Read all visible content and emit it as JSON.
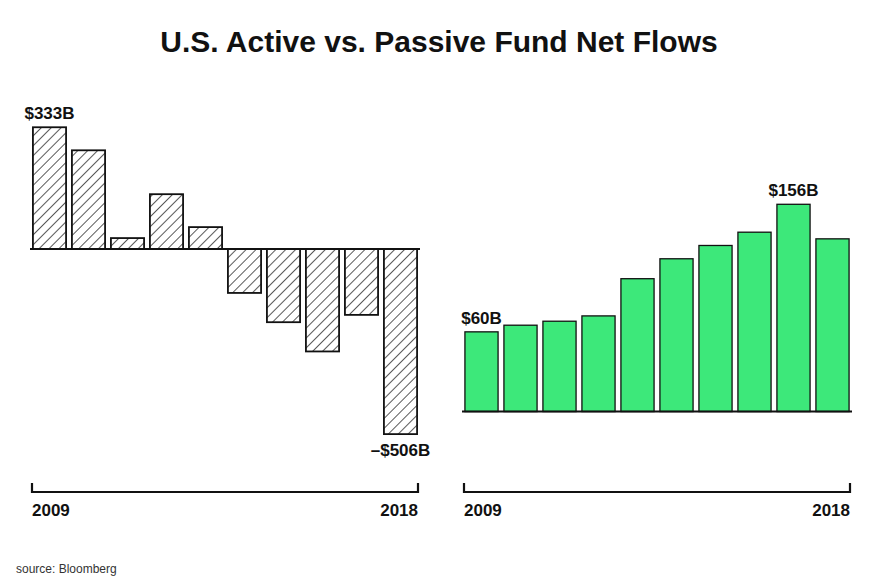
{
  "chart_data": [
    {
      "type": "bar",
      "title": "U.S. Active vs. Passive Fund Net Flows",
      "categories": [
        "2009",
        null,
        null,
        null,
        null,
        null,
        null,
        null,
        null,
        "2018"
      ],
      "values": [
        333,
        270,
        30,
        150,
        60,
        -120,
        -200,
        -280,
        -180,
        -506
      ],
      "data_labels": true,
      "value_labels": [
        "$333B",
        null,
        null,
        null,
        null,
        null,
        null,
        null,
        null,
        "–$506B"
      ],
      "color": "#ffffff",
      "ylim": [
        -626,
        413
      ],
      "tick_labels": false,
      "grid": false,
      "annotations": [
        "source: Bloomberg"
      ]
    },
    {
      "type": "bar",
      "categories": [
        "2009",
        null,
        null,
        null,
        null,
        null,
        null,
        null,
        null,
        "2018"
      ],
      "values": [
        60,
        65,
        68,
        72,
        100,
        115,
        125,
        135,
        156,
        130
      ],
      "data_labels": true,
      "value_labels": [
        "$60B",
        null,
        null,
        null,
        null,
        null,
        null,
        null,
        "$156B",
        null
      ],
      "color": "#3de87a",
      "ylim": [
        -50,
        236
      ],
      "tick_labels": false,
      "grid": false
    }
  ]
}
